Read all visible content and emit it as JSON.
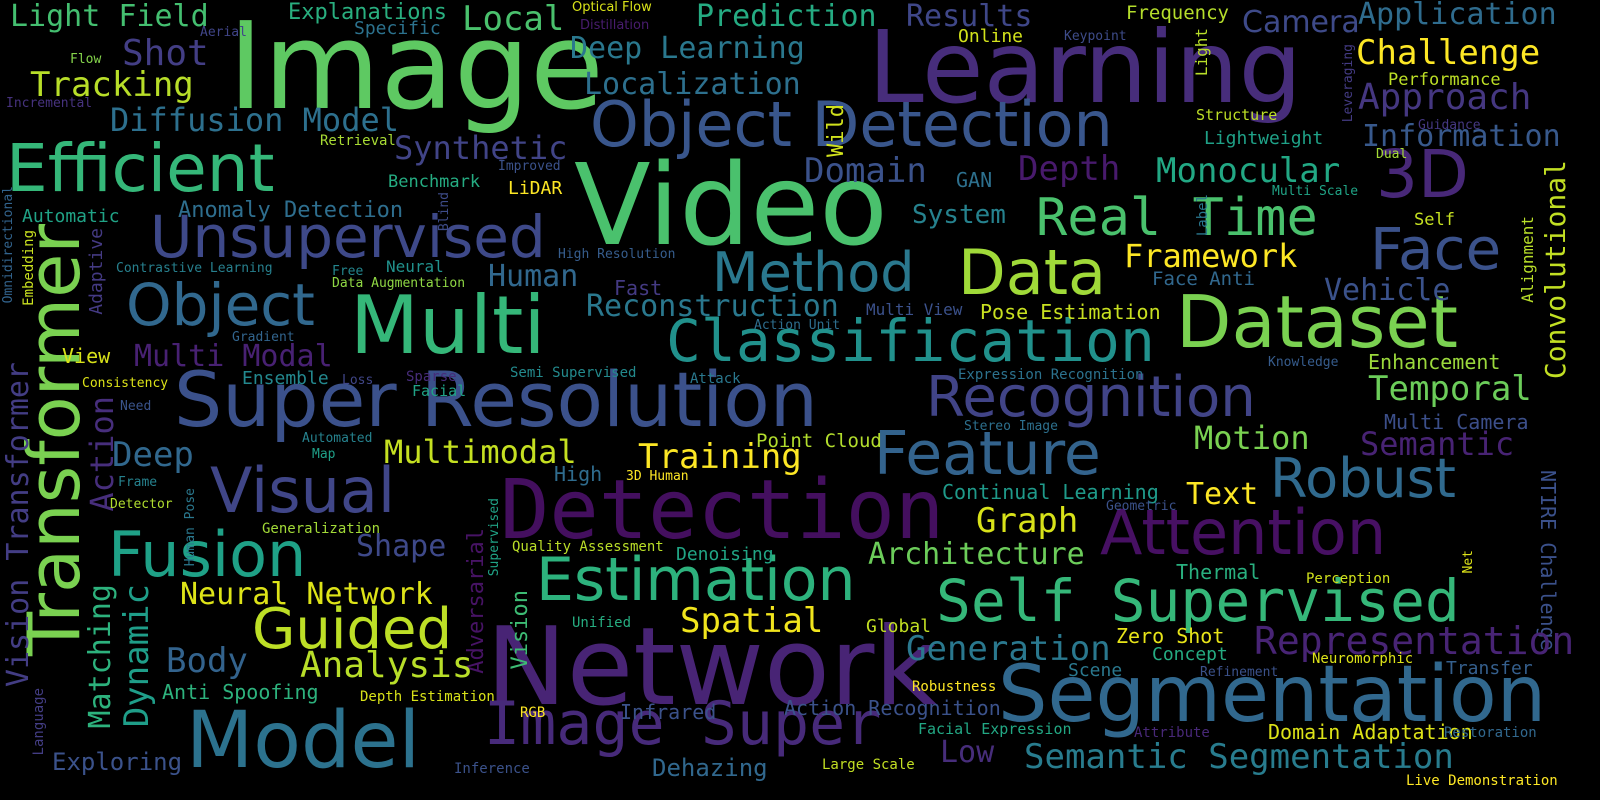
{
  "words": [
    {
      "id": "image",
      "text": "Image",
      "color": "#5ec962"
    },
    {
      "id": "learning",
      "text": "Learning",
      "color": "#472d7b"
    },
    {
      "id": "video",
      "text": "Video",
      "color": "#4ac16d"
    },
    {
      "id": "network",
      "text": "Network",
      "color": "#482475"
    },
    {
      "id": "detection-big",
      "text": "Detection",
      "color": "#440f5f"
    },
    {
      "id": "super-resolution",
      "text": "Super Resolution",
      "color": "#3b518b"
    },
    {
      "id": "segmentation",
      "text": "Segmentation",
      "color": "#31688e"
    },
    {
      "id": "dataset",
      "text": "Dataset",
      "color": "#7ad151"
    },
    {
      "id": "model",
      "text": "Model",
      "color": "#2c728e"
    },
    {
      "id": "multi",
      "text": "Multi",
      "color": "#35b779"
    },
    {
      "id": "transformer",
      "text": "Transformer",
      "color": "#7ad151"
    },
    {
      "id": "efficient",
      "text": "Efficient",
      "color": "#35b779"
    },
    {
      "id": "object-detection",
      "text": "Object Detection",
      "color": "#39568c"
    },
    {
      "id": "classification",
      "text": "Classification",
      "color": "#21918c"
    },
    {
      "id": "recognition",
      "text": "Recognition",
      "color": "#414487"
    },
    {
      "id": "self-supervised",
      "text": "Self Supervised",
      "color": "#35b779"
    },
    {
      "id": "estimation",
      "text": "Estimation",
      "color": "#2db27d"
    },
    {
      "id": "image-super",
      "text": "Image Super",
      "color": "#472a7a"
    },
    {
      "id": "visual",
      "text": "Visual",
      "color": "#404688"
    },
    {
      "id": "fusion",
      "text": "Fusion",
      "color": "#1fa187"
    },
    {
      "id": "guided",
      "text": "Guided",
      "color": "#bddf26"
    },
    {
      "id": "unsupervised",
      "text": "Unsupervised",
      "color": "#3e4989"
    },
    {
      "id": "feature",
      "text": "Feature",
      "color": "#33638d"
    },
    {
      "id": "attention",
      "text": "Attention",
      "color": "#471063"
    },
    {
      "id": "method",
      "text": "Method",
      "color": "#2a788e"
    },
    {
      "id": "data",
      "text": "Data",
      "color": "#a0da39"
    },
    {
      "id": "object-2",
      "text": "Object",
      "color": "#31688e"
    },
    {
      "id": "face",
      "text": "Face",
      "color": "#3b528b"
    },
    {
      "id": "3d",
      "text": "3D",
      "color": "#482878"
    },
    {
      "id": "real-time",
      "text": "Real Time",
      "color": "#4ac16d"
    },
    {
      "id": "robust",
      "text": "Robust",
      "color": "#306a8e"
    },
    {
      "id": "semantic-segmentation",
      "text": "Semantic Segmentation",
      "color": "#287c8e"
    },
    {
      "id": "light-field",
      "text": "Light Field",
      "color": "#44bf70"
    },
    {
      "id": "local",
      "text": "Local",
      "color": "#4ac16d"
    },
    {
      "id": "prediction",
      "text": "Prediction",
      "color": "#25ab82"
    },
    {
      "id": "results",
      "text": "Results",
      "color": "#3f4788"
    },
    {
      "id": "explanations",
      "text": "Explanations",
      "color": "#29af7f"
    },
    {
      "id": "optical-flow",
      "text": "Optical Flow",
      "color": "#d8e219"
    },
    {
      "id": "distillation",
      "text": "Distillation",
      "color": "#481c6e"
    },
    {
      "id": "frequency",
      "text": "Frequency",
      "color": "#b5de2b"
    },
    {
      "id": "camera",
      "text": "Camera",
      "color": "#3e4a89"
    },
    {
      "id": "application",
      "text": "Application",
      "color": "#2f6c8e"
    },
    {
      "id": "challenge",
      "text": "Challenge",
      "color": "#fde725"
    },
    {
      "id": "performance",
      "text": "Performance",
      "color": "#bddf26"
    },
    {
      "id": "approach",
      "text": "Approach",
      "color": "#453781"
    },
    {
      "id": "information",
      "text": "Information",
      "color": "#38598c"
    },
    {
      "id": "specific",
      "text": "Specific",
      "color": "#2c728e"
    },
    {
      "id": "aerial",
      "text": "Aerial",
      "color": "#404588"
    },
    {
      "id": "shot",
      "text": "Shot",
      "color": "#433e85"
    },
    {
      "id": "deep-learning",
      "text": "Deep Learning",
      "color": "#2a788e"
    },
    {
      "id": "localization",
      "text": "Localization",
      "color": "#2d708e"
    },
    {
      "id": "online",
      "text": "Online",
      "color": "#d2e21b"
    },
    {
      "id": "keypoint",
      "text": "Keypoint",
      "color": "#3e4c8a"
    },
    {
      "id": "light-vertical",
      "text": "Light",
      "color": "#b8de29"
    },
    {
      "id": "leveraging",
      "text": "Leveraging",
      "color": "#443b84"
    },
    {
      "id": "flow",
      "text": "Flow",
      "color": "#84d44b"
    },
    {
      "id": "tracking",
      "text": "Tracking",
      "color": "#b8de29"
    },
    {
      "id": "incremental",
      "text": "Incremental",
      "color": "#46327e"
    },
    {
      "id": "diffusion-model",
      "text": "Diffusion Model",
      "color": "#2d708e"
    },
    {
      "id": "structure",
      "text": "Structure",
      "color": "#bddf26"
    },
    {
      "id": "guidance",
      "text": "Guidance",
      "color": "#453882"
    },
    {
      "id": "lightweight",
      "text": "Lightweight",
      "color": "#1fa187"
    },
    {
      "id": "dual",
      "text": "Dual",
      "color": "#a5db36"
    },
    {
      "id": "retrieval",
      "text": "Retrieval",
      "color": "#a8db34"
    },
    {
      "id": "synthetic",
      "text": "Synthetic",
      "color": "#414487"
    },
    {
      "id": "wild",
      "text": "Wild",
      "color": "#d0e11c"
    },
    {
      "id": "domain",
      "text": "Domain",
      "color": "#3b528b"
    },
    {
      "id": "gan",
      "text": "GAN",
      "color": "#2d708e"
    },
    {
      "id": "depth",
      "text": "Depth",
      "color": "#481a6c"
    },
    {
      "id": "monocular",
      "text": "Monocular",
      "color": "#22a884"
    },
    {
      "id": "multi-scale",
      "text": "Multi Scale",
      "color": "#20a486"
    },
    {
      "id": "convolutional",
      "text": "Convolutional",
      "color": "#c2df23"
    },
    {
      "id": "omnidirectional",
      "text": "Omnidirectional",
      "color": "#32648e"
    },
    {
      "id": "benchmark",
      "text": "Benchmark",
      "color": "#25ac82"
    },
    {
      "id": "improved",
      "text": "Improved",
      "color": "#3b528b"
    },
    {
      "id": "lidar",
      "text": "LiDAR",
      "color": "#fde725"
    },
    {
      "id": "blind",
      "text": "Blind",
      "color": "#3e4c8a"
    },
    {
      "id": "automatic",
      "text": "Automatic",
      "color": "#20a386"
    },
    {
      "id": "anomaly-detection",
      "text": "Anomaly Detection",
      "color": "#2e6e8e"
    },
    {
      "id": "embedding",
      "text": "Embedding",
      "color": "#cae11f"
    },
    {
      "id": "adaptive",
      "text": "Adaptive",
      "color": "#443a83"
    },
    {
      "id": "system",
      "text": "System",
      "color": "#26828e"
    },
    {
      "id": "self",
      "text": "Self",
      "color": "#c5e021"
    },
    {
      "id": "label",
      "text": "Label",
      "color": "#2a778e"
    },
    {
      "id": "alignment",
      "text": "Alignment",
      "color": "#b8de29"
    },
    {
      "id": "high-resolution",
      "text": "High Resolution",
      "color": "#365d8d"
    },
    {
      "id": "framework",
      "text": "Framework",
      "color": "#fde725"
    },
    {
      "id": "contrastive-learning",
      "text": "Contrastive Learning",
      "color": "#27808e"
    },
    {
      "id": "free",
      "text": "Free",
      "color": "#24868e"
    },
    {
      "id": "neural",
      "text": "Neural",
      "color": "#21918c"
    },
    {
      "id": "data-augmentation",
      "text": "Data Augmentation",
      "color": "#8fd744"
    },
    {
      "id": "human",
      "text": "Human",
      "color": "#31688e"
    },
    {
      "id": "fast",
      "text": "Fast",
      "color": "#443a83"
    },
    {
      "id": "face-anti",
      "text": "Face Anti",
      "color": "#31688e"
    },
    {
      "id": "vehicle",
      "text": "Vehicle",
      "color": "#3b528b"
    },
    {
      "id": "reconstruction",
      "text": "Reconstruction",
      "color": "#2a788e"
    },
    {
      "id": "multi-view",
      "text": "Multi View",
      "color": "#3b518b"
    },
    {
      "id": "pose-estimation",
      "text": "Pose Estimation",
      "color": "#c8e020"
    },
    {
      "id": "gradient",
      "text": "Gradient",
      "color": "#32658e"
    },
    {
      "id": "action-unit",
      "text": "Action Unit",
      "color": "#2e6e8e"
    },
    {
      "id": "multi-modal",
      "text": "Multi Modal",
      "color": "#482173"
    },
    {
      "id": "view",
      "text": "View",
      "color": "#d8e219"
    },
    {
      "id": "knowledge",
      "text": "Knowledge",
      "color": "#365c8d"
    },
    {
      "id": "enhancement",
      "text": "Enhancement",
      "color": "#9bd93c"
    },
    {
      "id": "consistency",
      "text": "Consistency",
      "color": "#dde318"
    },
    {
      "id": "ensemble",
      "text": "Ensemble",
      "color": "#23888e"
    },
    {
      "id": "loss",
      "text": "Loss",
      "color": "#404688"
    },
    {
      "id": "sparse",
      "text": "Sparse",
      "color": "#472c7a"
    },
    {
      "id": "semi-supervised",
      "text": "Semi Supervised",
      "color": "#238a8d"
    },
    {
      "id": "attack",
      "text": "Attack",
      "color": "#2a788e"
    },
    {
      "id": "expression-recognition",
      "text": "Expression Recognition",
      "color": "#2c728e"
    },
    {
      "id": "temporal",
      "text": "Temporal",
      "color": "#6ccd5a"
    },
    {
      "id": "action-vertical",
      "text": "Action",
      "color": "#472e7c"
    },
    {
      "id": "facial",
      "text": "Facial",
      "color": "#20a386"
    },
    {
      "id": "need",
      "text": "Need",
      "color": "#3a548c"
    },
    {
      "id": "vision-transformer",
      "text": "Vision Transformer",
      "color": "#433d84"
    },
    {
      "id": "multi-camera",
      "text": "Multi Camera",
      "color": "#3c4f8a"
    },
    {
      "id": "stereo-image",
      "text": "Stereo Image",
      "color": "#2d708e"
    },
    {
      "id": "motion",
      "text": "Motion",
      "color": "#7ad151"
    },
    {
      "id": "semantic",
      "text": "Semantic",
      "color": "#482374"
    },
    {
      "id": "deep",
      "text": "Deep",
      "color": "#31688e"
    },
    {
      "id": "automated",
      "text": "Automated",
      "color": "#26828e"
    },
    {
      "id": "map",
      "text": "Map",
      "color": "#1fa088"
    },
    {
      "id": "multimodal",
      "text": "Multimodal",
      "color": "#c5e021"
    },
    {
      "id": "point-cloud",
      "text": "Point Cloud",
      "color": "#b2dd2d"
    },
    {
      "id": "training",
      "text": "Training",
      "color": "#fde725"
    },
    {
      "id": "high",
      "text": "High",
      "color": "#2f6c8e"
    },
    {
      "id": "3d-human",
      "text": "3D Human",
      "color": "#fde725"
    },
    {
      "id": "frame",
      "text": "Frame",
      "color": "#26828e"
    },
    {
      "id": "detector",
      "text": "Detector",
      "color": "#b0dd2f"
    },
    {
      "id": "human-pose",
      "text": "Human Pose",
      "color": "#2a788e"
    },
    {
      "id": "continual-learning",
      "text": "Continual Learning",
      "color": "#1f9a8a"
    },
    {
      "id": "text",
      "text": "Text",
      "color": "#fde725"
    },
    {
      "id": "geometric",
      "text": "Geometric",
      "color": "#3b528b"
    },
    {
      "id": "graph",
      "text": "Graph",
      "color": "#d8e219"
    },
    {
      "id": "generalization",
      "text": "Generalization",
      "color": "#a2da37"
    },
    {
      "id": "supervised-vertical",
      "text": "Supervised",
      "color": "#20a386"
    },
    {
      "id": "adversarial",
      "text": "Adversarial",
      "color": "#471365"
    },
    {
      "id": "shape",
      "text": "Shape",
      "color": "#3e4989"
    },
    {
      "id": "quality-assessment",
      "text": "Quality Assessment",
      "color": "#bade28"
    },
    {
      "id": "denoising",
      "text": "Denoising",
      "color": "#21a585"
    },
    {
      "id": "architecture",
      "text": "Architecture",
      "color": "#6ccd5a"
    },
    {
      "id": "matching",
      "text": "Matching",
      "color": "#2db27d"
    },
    {
      "id": "dynamic",
      "text": "Dynamic",
      "color": "#1f9e89"
    },
    {
      "id": "neural-network",
      "text": "Neural Network",
      "color": "#dde318"
    },
    {
      "id": "vision-vertical",
      "text": "Vision",
      "color": "#3dbc74"
    },
    {
      "id": "thermal",
      "text": "Thermal",
      "color": "#29af7f"
    },
    {
      "id": "perception",
      "text": "Perception",
      "color": "#d0e11c"
    },
    {
      "id": "ntire-challenge",
      "text": "NTIRE Challenge",
      "color": "#3b518b"
    },
    {
      "id": "net",
      "text": "Net",
      "color": "#dde318"
    },
    {
      "id": "unified",
      "text": "Unified",
      "color": "#26ad81"
    },
    {
      "id": "spatial",
      "text": "Spatial",
      "color": "#f1e51d"
    },
    {
      "id": "global",
      "text": "Global",
      "color": "#c2df23"
    },
    {
      "id": "zero-shot",
      "text": "Zero Shot",
      "color": "#e7e419"
    },
    {
      "id": "generation",
      "text": "Generation",
      "color": "#2a788e"
    },
    {
      "id": "representation",
      "text": "Representation",
      "color": "#482475"
    },
    {
      "id": "body",
      "text": "Body",
      "color": "#33638d"
    },
    {
      "id": "concept",
      "text": "Concept",
      "color": "#25ac82"
    },
    {
      "id": "analysis",
      "text": "Analysis",
      "color": "#b8de29"
    },
    {
      "id": "scene",
      "text": "Scene",
      "color": "#2a788e"
    },
    {
      "id": "neuromorphic",
      "text": "Neuromorphic",
      "color": "#dde318"
    },
    {
      "id": "transfer",
      "text": "Transfer",
      "color": "#355f8d"
    },
    {
      "id": "refinement",
      "text": "Refinement",
      "color": "#3b528b"
    },
    {
      "id": "anti-spoofing",
      "text": "Anti Spoofing",
      "color": "#2db27d"
    },
    {
      "id": "robustness",
      "text": "Robustness",
      "color": "#fde725"
    },
    {
      "id": "depth-estimation",
      "text": "Depth Estimation",
      "color": "#d8e219"
    },
    {
      "id": "rgb",
      "text": "RGB",
      "color": "#fde725"
    },
    {
      "id": "infrared",
      "text": "Infrared",
      "color": "#3b528b"
    },
    {
      "id": "action-recognition",
      "text": "Action Recognition",
      "color": "#3b528b"
    },
    {
      "id": "language",
      "text": "Language",
      "color": "#433d84"
    },
    {
      "id": "facial-expression",
      "text": "Facial Expression",
      "color": "#22a884"
    },
    {
      "id": "attribute",
      "text": "Attribute",
      "color": "#482878"
    },
    {
      "id": "domain-adaptation",
      "text": "Domain Adaptation",
      "color": "#dde318"
    },
    {
      "id": "restoration",
      "text": "Restoration",
      "color": "#31688e"
    },
    {
      "id": "low",
      "text": "Low",
      "color": "#472d7b"
    },
    {
      "id": "exploring",
      "text": "Exploring",
      "color": "#3b528b"
    },
    {
      "id": "inference",
      "text": "Inference",
      "color": "#3b528b"
    },
    {
      "id": "dehazing",
      "text": "Dehazing",
      "color": "#31688e"
    },
    {
      "id": "large-scale",
      "text": "Large Scale",
      "color": "#c2df23"
    },
    {
      "id": "live-demonstration",
      "text": "Live Demonstration",
      "color": "#fde725"
    }
  ]
}
